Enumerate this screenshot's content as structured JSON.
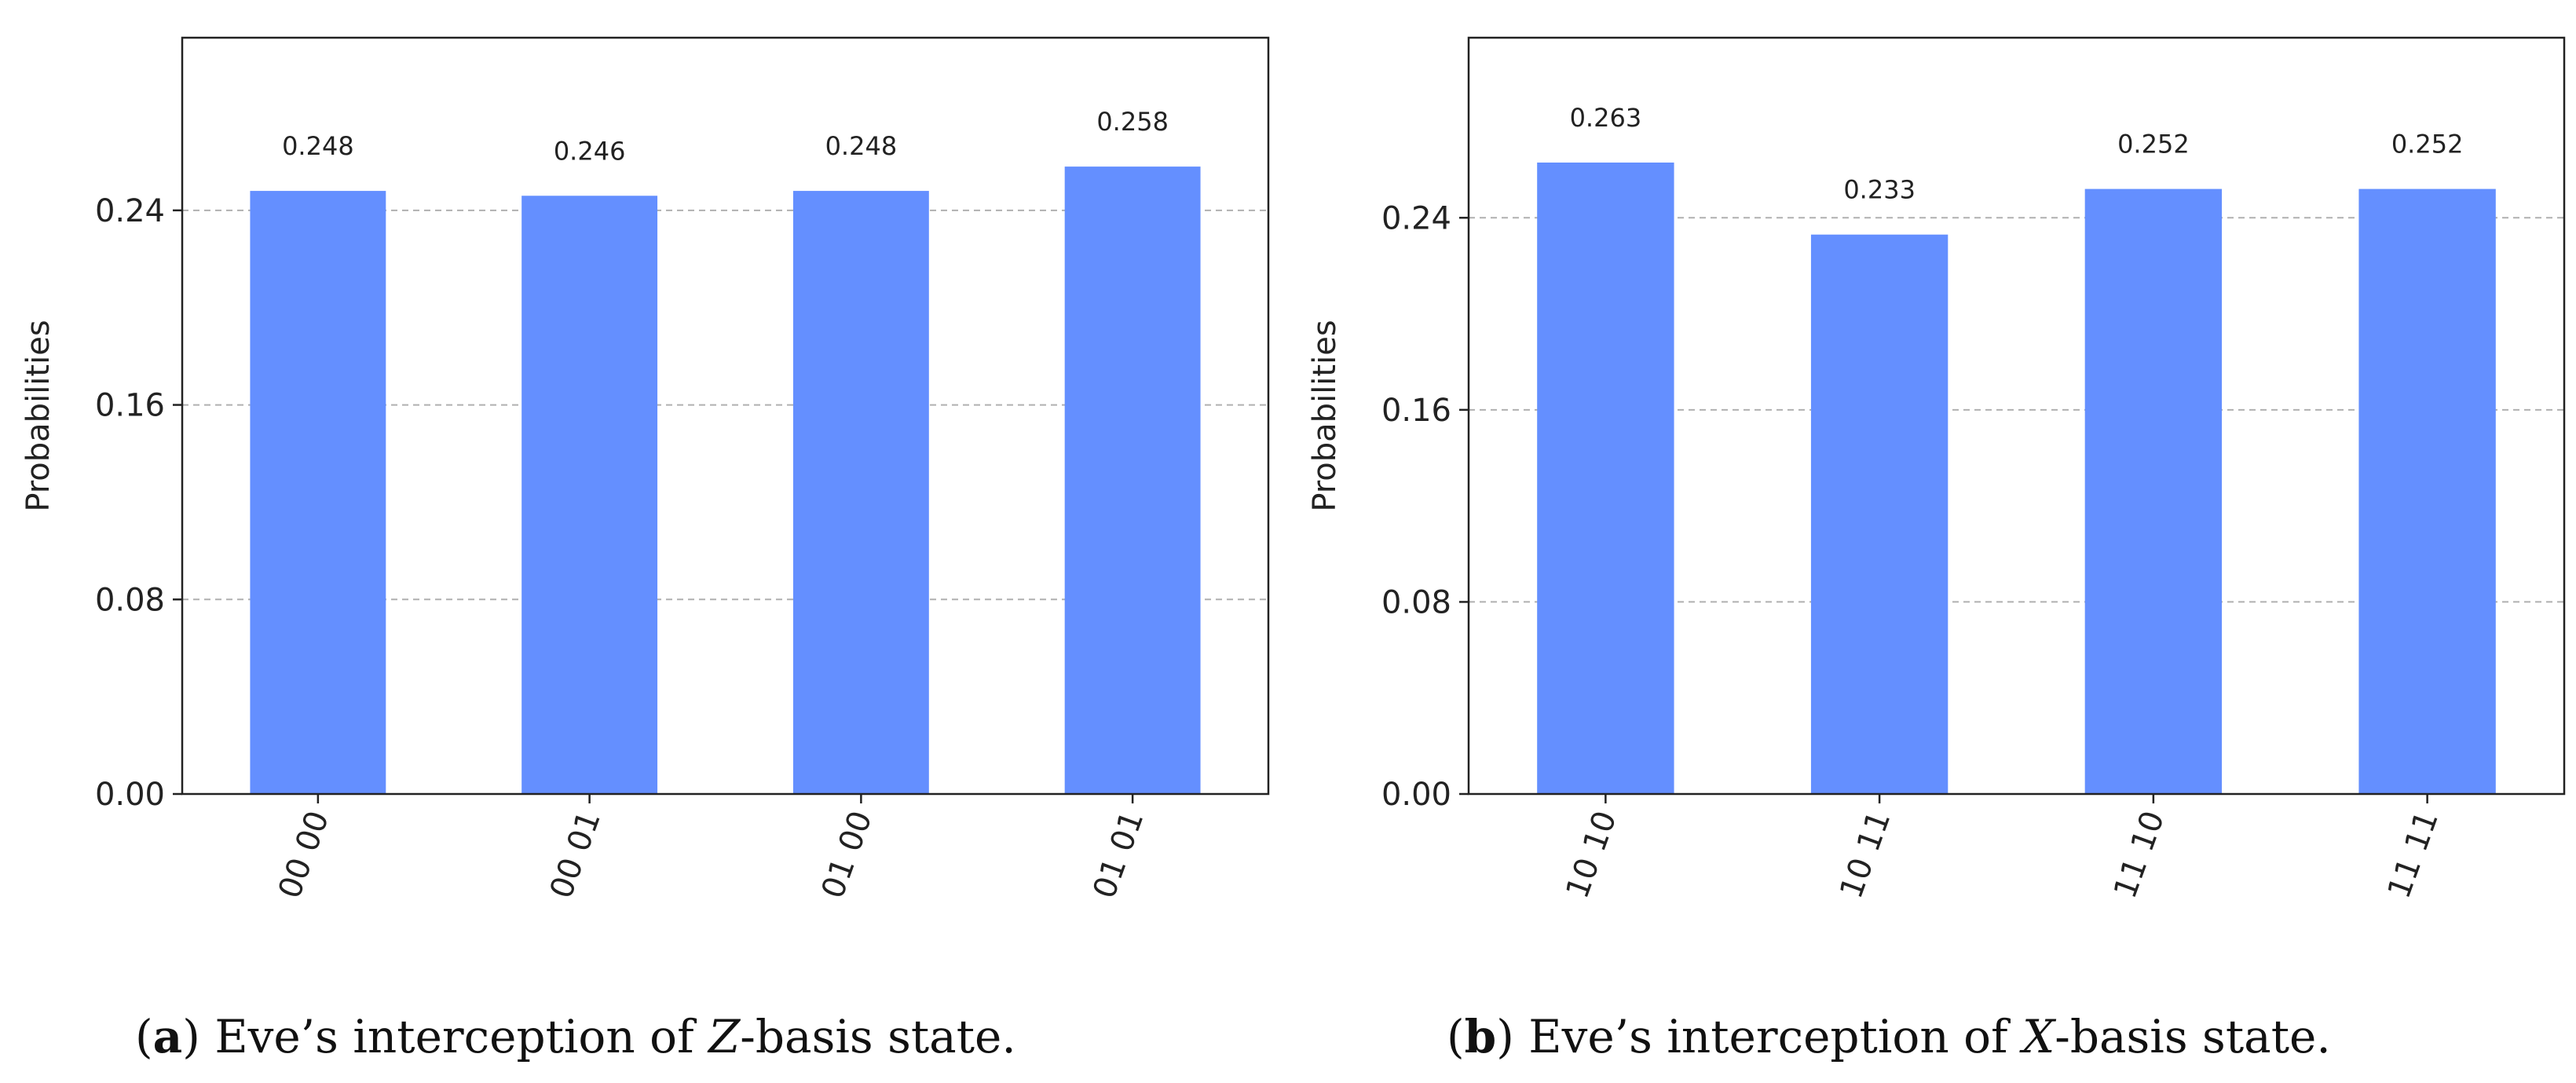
{
  "chart_data": [
    {
      "type": "bar",
      "id": "a",
      "categories": [
        "00 00",
        "00 01",
        "01 00",
        "01 01"
      ],
      "values": [
        0.248,
        0.246,
        0.248,
        0.258
      ],
      "value_labels": [
        "0.248",
        "0.246",
        "0.248",
        "0.258"
      ],
      "ylabel": "Probabilities",
      "xlabel": "",
      "ylim": [
        0,
        0.311
      ],
      "yticks": [
        0.0,
        0.08,
        0.16,
        0.24
      ],
      "ytick_labels": [
        "0.00",
        "0.08",
        "0.16",
        "0.24"
      ],
      "bar_color": "#648fff",
      "grid": true,
      "caption": {
        "label": "a",
        "prefix": "Eve’s interception of ",
        "basis": "Z",
        "suffix": "-basis state."
      }
    },
    {
      "type": "bar",
      "id": "b",
      "categories": [
        "10 10",
        "10 11",
        "11 10",
        "11 11"
      ],
      "values": [
        0.263,
        0.233,
        0.252,
        0.252
      ],
      "value_labels": [
        "0.263",
        "0.233",
        "0.252",
        "0.252"
      ],
      "ylabel": "Probabilities",
      "xlabel": "",
      "ylim": [
        0,
        0.315
      ],
      "yticks": [
        0.0,
        0.08,
        0.16,
        0.24
      ],
      "ytick_labels": [
        "0.00",
        "0.08",
        "0.16",
        "0.24"
      ],
      "bar_color": "#648fff",
      "grid": true,
      "caption": {
        "label": "b",
        "prefix": "Eve’s interception of ",
        "basis": "X",
        "suffix": "-basis state."
      }
    }
  ]
}
